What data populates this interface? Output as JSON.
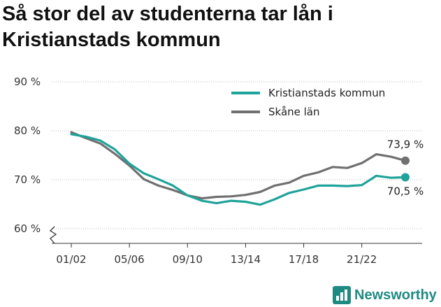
{
  "title": "Så stor del av studenterna tar lån i Kristianstads kommun",
  "brand": {
    "name": "Newsworthy",
    "icon": "newsworthy-bar-chart-logo"
  },
  "chart_data": {
    "type": "line",
    "title": "Så stor del av studenterna tar lån i Kristianstads kommun",
    "xlabel": "",
    "ylabel": "",
    "ylim": [
      57,
      90
    ],
    "y_ticks": [
      60,
      70,
      80,
      90
    ],
    "y_tick_labels": [
      "60 %",
      "70 %",
      "80 %",
      "90 %"
    ],
    "y_axis_break": true,
    "grid": true,
    "legend_position": "top-right",
    "x": [
      "01/02",
      "02/03",
      "03/04",
      "04/05",
      "05/06",
      "06/07",
      "07/08",
      "08/09",
      "09/10",
      "10/11",
      "11/12",
      "12/13",
      "13/14",
      "14/15",
      "15/16",
      "16/17",
      "17/18",
      "18/19",
      "19/20",
      "20/21",
      "21/22",
      "22/23",
      "23/24",
      "24/25"
    ],
    "x_tick_labels": [
      "01/02",
      "05/06",
      "09/10",
      "13/14",
      "17/18",
      "21/22"
    ],
    "series": [
      {
        "name": "Kristianstads kommun",
        "color": "#1fa39a",
        "values": [
          79.3,
          78.8,
          78.0,
          76.2,
          73.3,
          71.3,
          70.1,
          68.8,
          66.8,
          65.7,
          65.2,
          65.7,
          65.5,
          64.9,
          66.0,
          67.3,
          68.0,
          68.8,
          68.8,
          68.7,
          68.9,
          70.8,
          70.4,
          70.5
        ],
        "end_label": "70,5 %"
      },
      {
        "name": "Skåne län",
        "color": "#707070",
        "values": [
          79.7,
          78.5,
          77.4,
          75.3,
          72.9,
          70.1,
          68.8,
          67.9,
          66.8,
          66.2,
          66.5,
          66.6,
          66.9,
          67.5,
          68.8,
          69.4,
          70.8,
          71.5,
          72.6,
          72.4,
          73.4,
          75.2,
          74.7,
          73.9
        ],
        "end_label": "73,9 %"
      }
    ]
  }
}
